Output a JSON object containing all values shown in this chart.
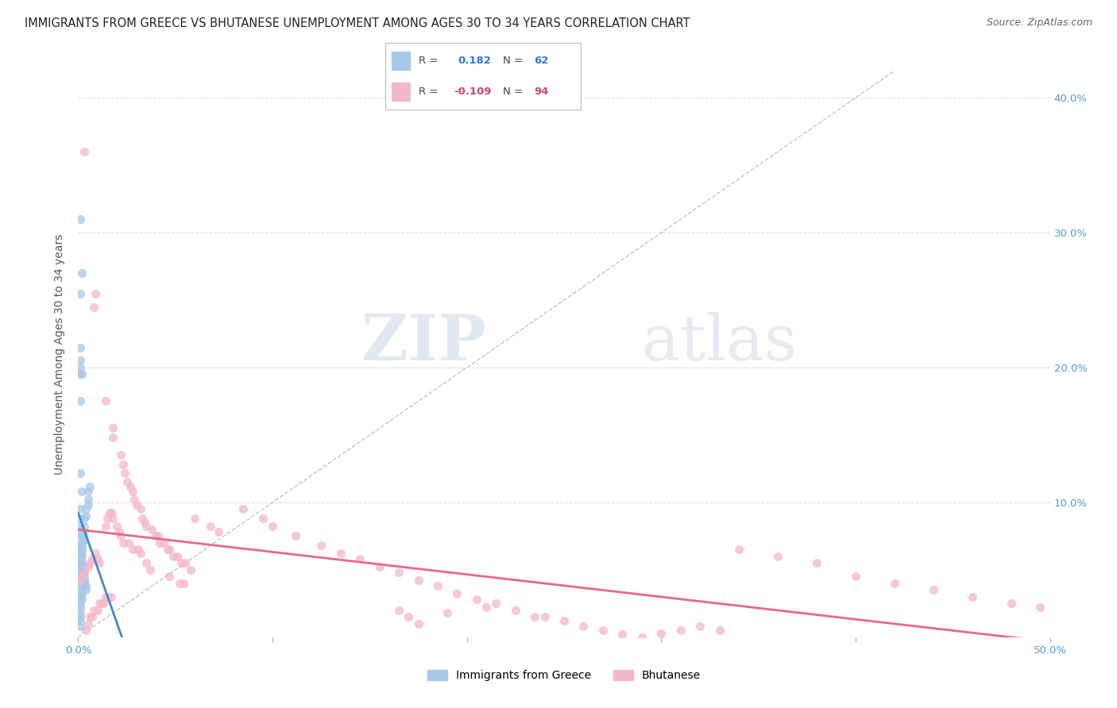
{
  "title": "IMMIGRANTS FROM GREECE VS BHUTANESE UNEMPLOYMENT AMONG AGES 30 TO 34 YEARS CORRELATION CHART",
  "source": "Source: ZipAtlas.com",
  "ylabel": "Unemployment Among Ages 30 to 34 years",
  "xlim": [
    0,
    0.5
  ],
  "ylim": [
    0,
    0.42
  ],
  "xticks": [
    0.0,
    0.1,
    0.2,
    0.3,
    0.4,
    0.5
  ],
  "xtick_labels": [
    "0.0%",
    "",
    "",
    "",
    "",
    "50.0%"
  ],
  "yticks": [
    0.0,
    0.1,
    0.2,
    0.3,
    0.4
  ],
  "ytick_labels_right": [
    "",
    "10.0%",
    "20.0%",
    "30.0%",
    "40.0%"
  ],
  "greece_color": "#a8c8e8",
  "bhutan_color": "#f5b8c8",
  "greece_line_color": "#4488cc",
  "bhutan_line_color": "#e86888",
  "diag_color": "#b8c8d8",
  "watermark_zip": "ZIP",
  "watermark_atlas": "atlas",
  "greece_scatter": [
    [
      0.001,
      0.31
    ],
    [
      0.002,
      0.27
    ],
    [
      0.001,
      0.255
    ],
    [
      0.001,
      0.215
    ],
    [
      0.001,
      0.205
    ],
    [
      0.001,
      0.2
    ],
    [
      0.001,
      0.195
    ],
    [
      0.001,
      0.175
    ],
    [
      0.002,
      0.195
    ],
    [
      0.001,
      0.122
    ],
    [
      0.002,
      0.108
    ],
    [
      0.001,
      0.095
    ],
    [
      0.001,
      0.088
    ],
    [
      0.001,
      0.082
    ],
    [
      0.001,
      0.078
    ],
    [
      0.002,
      0.075
    ],
    [
      0.002,
      0.07
    ],
    [
      0.002,
      0.065
    ],
    [
      0.002,
      0.06
    ],
    [
      0.002,
      0.055
    ],
    [
      0.002,
      0.052
    ],
    [
      0.003,
      0.05
    ],
    [
      0.003,
      0.048
    ],
    [
      0.003,
      0.045
    ],
    [
      0.003,
      0.042
    ],
    [
      0.003,
      0.04
    ],
    [
      0.004,
      0.038
    ],
    [
      0.004,
      0.035
    ],
    [
      0.001,
      0.008
    ],
    [
      0.001,
      0.012
    ],
    [
      0.001,
      0.015
    ],
    [
      0.001,
      0.018
    ],
    [
      0.001,
      0.022
    ],
    [
      0.001,
      0.025
    ],
    [
      0.001,
      0.03
    ],
    [
      0.001,
      0.035
    ],
    [
      0.001,
      0.04
    ],
    [
      0.001,
      0.045
    ],
    [
      0.001,
      0.05
    ],
    [
      0.001,
      0.055
    ],
    [
      0.001,
      0.06
    ],
    [
      0.001,
      0.065
    ],
    [
      0.001,
      0.07
    ],
    [
      0.002,
      0.028
    ],
    [
      0.002,
      0.032
    ],
    [
      0.002,
      0.038
    ],
    [
      0.002,
      0.042
    ],
    [
      0.002,
      0.048
    ],
    [
      0.002,
      0.055
    ],
    [
      0.002,
      0.062
    ],
    [
      0.002,
      0.068
    ],
    [
      0.002,
      0.075
    ],
    [
      0.003,
      0.072
    ],
    [
      0.003,
      0.078
    ],
    [
      0.003,
      0.082
    ],
    [
      0.003,
      0.088
    ],
    [
      0.004,
      0.09
    ],
    [
      0.004,
      0.095
    ],
    [
      0.005,
      0.098
    ],
    [
      0.005,
      0.102
    ],
    [
      0.005,
      0.108
    ],
    [
      0.006,
      0.112
    ]
  ],
  "bhutan_scatter": [
    [
      0.003,
      0.36
    ],
    [
      0.008,
      0.245
    ],
    [
      0.009,
      0.255
    ],
    [
      0.014,
      0.175
    ],
    [
      0.018,
      0.155
    ],
    [
      0.018,
      0.148
    ],
    [
      0.022,
      0.135
    ],
    [
      0.023,
      0.128
    ],
    [
      0.024,
      0.122
    ],
    [
      0.025,
      0.115
    ],
    [
      0.027,
      0.112
    ],
    [
      0.028,
      0.108
    ],
    [
      0.029,
      0.102
    ],
    [
      0.03,
      0.098
    ],
    [
      0.032,
      0.095
    ],
    [
      0.033,
      0.088
    ],
    [
      0.034,
      0.085
    ],
    [
      0.035,
      0.082
    ],
    [
      0.038,
      0.08
    ],
    [
      0.04,
      0.075
    ],
    [
      0.041,
      0.075
    ],
    [
      0.042,
      0.07
    ],
    [
      0.044,
      0.07
    ],
    [
      0.046,
      0.065
    ],
    [
      0.047,
      0.065
    ],
    [
      0.049,
      0.06
    ],
    [
      0.051,
      0.06
    ],
    [
      0.053,
      0.055
    ],
    [
      0.055,
      0.055
    ],
    [
      0.058,
      0.05
    ],
    [
      0.014,
      0.082
    ],
    [
      0.015,
      0.088
    ],
    [
      0.016,
      0.092
    ],
    [
      0.017,
      0.092
    ],
    [
      0.018,
      0.088
    ],
    [
      0.02,
      0.082
    ],
    [
      0.021,
      0.078
    ],
    [
      0.022,
      0.075
    ],
    [
      0.023,
      0.07
    ],
    [
      0.026,
      0.07
    ],
    [
      0.028,
      0.065
    ],
    [
      0.031,
      0.065
    ],
    [
      0.032,
      0.062
    ],
    [
      0.035,
      0.055
    ],
    [
      0.037,
      0.05
    ],
    [
      0.047,
      0.045
    ],
    [
      0.052,
      0.04
    ],
    [
      0.054,
      0.04
    ],
    [
      0.004,
      0.005
    ],
    [
      0.005,
      0.01
    ],
    [
      0.006,
      0.015
    ],
    [
      0.007,
      0.015
    ],
    [
      0.008,
      0.02
    ],
    [
      0.01,
      0.02
    ],
    [
      0.011,
      0.025
    ],
    [
      0.012,
      0.025
    ],
    [
      0.013,
      0.025
    ],
    [
      0.014,
      0.03
    ],
    [
      0.015,
      0.03
    ],
    [
      0.017,
      0.03
    ],
    [
      0.001,
      0.042
    ],
    [
      0.002,
      0.045
    ],
    [
      0.003,
      0.048
    ],
    [
      0.005,
      0.052
    ],
    [
      0.006,
      0.055
    ],
    [
      0.007,
      0.058
    ],
    [
      0.009,
      0.062
    ],
    [
      0.01,
      0.058
    ],
    [
      0.011,
      0.055
    ],
    [
      0.06,
      0.088
    ],
    [
      0.068,
      0.082
    ],
    [
      0.072,
      0.078
    ],
    [
      0.085,
      0.095
    ],
    [
      0.095,
      0.088
    ],
    [
      0.1,
      0.082
    ],
    [
      0.112,
      0.075
    ],
    [
      0.125,
      0.068
    ],
    [
      0.135,
      0.062
    ],
    [
      0.145,
      0.058
    ],
    [
      0.155,
      0.052
    ],
    [
      0.165,
      0.048
    ],
    [
      0.175,
      0.042
    ],
    [
      0.185,
      0.038
    ],
    [
      0.195,
      0.032
    ],
    [
      0.205,
      0.028
    ],
    [
      0.215,
      0.025
    ],
    [
      0.225,
      0.02
    ],
    [
      0.235,
      0.015
    ],
    [
      0.25,
      0.012
    ],
    [
      0.26,
      0.008
    ],
    [
      0.27,
      0.005
    ],
    [
      0.28,
      0.002
    ],
    [
      0.29,
      0.0
    ],
    [
      0.3,
      0.003
    ],
    [
      0.31,
      0.005
    ],
    [
      0.32,
      0.008
    ],
    [
      0.33,
      0.005
    ],
    [
      0.165,
      0.02
    ],
    [
      0.17,
      0.015
    ],
    [
      0.175,
      0.01
    ],
    [
      0.19,
      0.018
    ],
    [
      0.21,
      0.022
    ],
    [
      0.24,
      0.015
    ],
    [
      0.34,
      0.065
    ],
    [
      0.36,
      0.06
    ],
    [
      0.38,
      0.055
    ],
    [
      0.4,
      0.045
    ],
    [
      0.42,
      0.04
    ],
    [
      0.44,
      0.035
    ],
    [
      0.46,
      0.03
    ],
    [
      0.48,
      0.025
    ],
    [
      0.495,
      0.022
    ]
  ],
  "title_fontsize": 10.5,
  "axis_label_fontsize": 10,
  "tick_fontsize": 9.5,
  "legend_fontsize": 10,
  "source_fontsize": 9
}
